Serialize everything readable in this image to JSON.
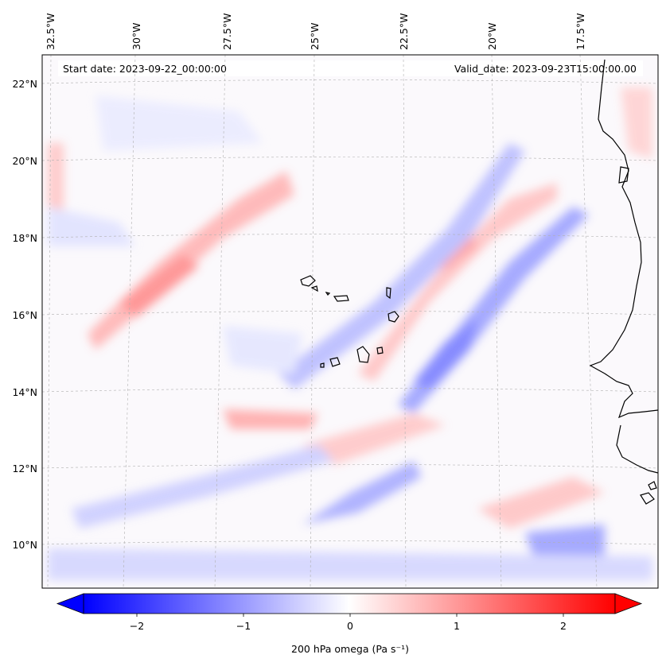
{
  "header": {
    "start_date": "Start date: 2023-09-22_00:00:00",
    "valid_date": "Valid_date: 2023-09-23T15:00:00.00"
  },
  "map": {
    "lon_labels": [
      "32.5°W",
      "30°W",
      "27.5°W",
      "25°W",
      "22.5°W",
      "20°W",
      "17.5°W"
    ],
    "lat_labels": [
      "22°N",
      "20°N",
      "18°N",
      "16°N",
      "14°N",
      "12°N",
      "10°N"
    ],
    "field": "200 hPa omega",
    "colormap": [
      "#0000ff",
      "#ffffff",
      "#ff0000"
    ]
  },
  "colorbar": {
    "ticks": [
      "−2",
      "−1",
      "0",
      "1",
      "2"
    ],
    "label": "200 hPa omega (Pa s⁻¹)",
    "vmin": -2.5,
    "vmax": 2.5
  }
}
